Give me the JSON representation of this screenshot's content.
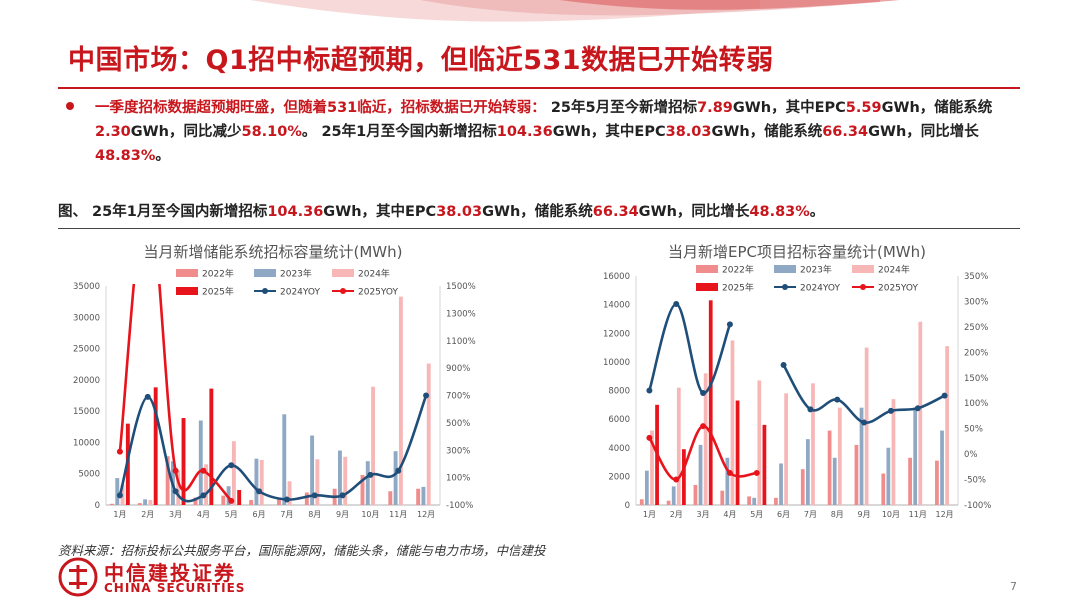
{
  "slide": {
    "title": "中国市场：Q1招中标超预期，但临近531数据已开始转弱",
    "bullet": [
      {
        "t": "一季度招标数据超预期旺盛，但随着531临近，招标数据已开始转弱：",
        "hl": true
      },
      {
        "t": " 25年5月至今新增招标",
        "hl": false
      },
      {
        "t": "7.89",
        "hl": true
      },
      {
        "t": "GWh，其中EPC",
        "hl": false
      },
      {
        "t": "5.59",
        "hl": true
      },
      {
        "t": "GWh，储能系统",
        "hl": false
      },
      {
        "t": "2.30",
        "hl": true
      },
      {
        "t": "GWh，同比减少",
        "hl": false
      },
      {
        "t": "58.10%",
        "hl": true
      },
      {
        "t": "。 25年1月至今国内新增招标",
        "hl": false
      },
      {
        "t": "104.36",
        "hl": true
      },
      {
        "t": "GWh，其中EPC",
        "hl": false
      },
      {
        "t": "38.03",
        "hl": true
      },
      {
        "t": "GWh，储能系统",
        "hl": false
      },
      {
        "t": "66.34",
        "hl": true
      },
      {
        "t": "GWh，同比增长",
        "hl": false
      },
      {
        "t": "48.83%",
        "hl": true
      },
      {
        "t": "。",
        "hl": false
      }
    ],
    "figure_caption": [
      {
        "t": "图、 25年1月至今国内新增招标",
        "hl": false
      },
      {
        "t": "104.36",
        "hl": true
      },
      {
        "t": "GWh，其中EPC",
        "hl": false
      },
      {
        "t": "38.03",
        "hl": true
      },
      {
        "t": "GWh，储能系统",
        "hl": false
      },
      {
        "t": "66.34",
        "hl": true
      },
      {
        "t": "GWh，同比增长",
        "hl": false
      },
      {
        "t": "48.83%",
        "hl": true
      },
      {
        "t": "。",
        "hl": false
      }
    ],
    "source": "资料来源：招标投标公共服务平台，国际能源网，储能头条，储能与电力市场，中信建投",
    "logo_cn": "中信建投证券",
    "logo_en": "CHINA SECURITIES",
    "page_number": "7",
    "colors": {
      "accent": "#c8161d"
    }
  },
  "chart_data": [
    {
      "type": "bar",
      "title": "当月新增储能系统招标容量统计(MWh)",
      "categories": [
        "1月",
        "2月",
        "3月",
        "4月",
        "5月",
        "6月",
        "7月",
        "8月",
        "9月",
        "10月",
        "11月",
        "12月"
      ],
      "ylim": [
        0,
        35000
      ],
      "yticks": [
        "0",
        "5000",
        "10000",
        "15000",
        "20000",
        "25000",
        "30000",
        "35000"
      ],
      "y2lim": [
        -100,
        1500
      ],
      "y2ticks": [
        "-100%",
        "100%",
        "300%",
        "500%",
        "700%",
        "900%",
        "1100%",
        "1300%",
        "1500%"
      ],
      "series": [
        {
          "name": "2022年",
          "kind": "bar",
          "color": "#f08c8c",
          "values": [
            200,
            300,
            7800,
            1200,
            1500,
            800,
            1000,
            2000,
            2600,
            4800,
            2200,
            2600
          ]
        },
        {
          "name": "2023年",
          "kind": "bar",
          "color": "#8fa8c4",
          "values": [
            4300,
            900,
            7000,
            13500,
            3000,
            7400,
            14500,
            11100,
            8700,
            7000,
            8600,
            2900
          ]
        },
        {
          "name": "2024年",
          "kind": "bar",
          "color": "#f7b7b7",
          "values": [
            3200,
            800,
            5500,
            6500,
            10200,
            7200,
            3800,
            7300,
            7700,
            18900,
            33300,
            22600
          ]
        },
        {
          "name": "2025年",
          "kind": "bar",
          "color": "#e8141c",
          "values": [
            13000,
            18800,
            13900,
            18600,
            2400,
            null,
            null,
            null,
            null,
            null,
            null,
            null
          ]
        },
        {
          "name": "2024YOY",
          "kind": "line",
          "color": "#1f4e79",
          "values": [
            -30,
            690,
            0,
            -30,
            190,
            0,
            -60,
            -30,
            -30,
            120,
            150,
            700
          ]
        },
        {
          "name": "2025YOY",
          "kind": "line",
          "color": "#e8141c",
          "values": [
            290,
            2200,
            150,
            150,
            -70,
            null,
            null,
            null,
            null,
            null,
            null,
            null
          ]
        }
      ],
      "legend": "top"
    },
    {
      "type": "bar",
      "title": "当月新增EPC项目招标容量统计(MWh)",
      "categories": [
        "1月",
        "2月",
        "3月",
        "4月",
        "5月",
        "6月",
        "7月",
        "8月",
        "9月",
        "10月",
        "11月",
        "12月"
      ],
      "ylim": [
        0,
        16000
      ],
      "yticks": [
        "0",
        "2000",
        "4000",
        "6000",
        "8000",
        "10000",
        "12000",
        "14000",
        "16000"
      ],
      "y2lim": [
        -100,
        350
      ],
      "y2ticks": [
        "-100%",
        "-50%",
        "0%",
        "50%",
        "100%",
        "150%",
        "200%",
        "250%",
        "300%",
        "350%"
      ],
      "series": [
        {
          "name": "2022年",
          "kind": "bar",
          "color": "#f08c8c",
          "values": [
            400,
            300,
            1400,
            1000,
            600,
            500,
            2500,
            5200,
            4200,
            2200,
            3300,
            3100
          ]
        },
        {
          "name": "2023年",
          "kind": "bar",
          "color": "#8fa8c4",
          "values": [
            2400,
            1300,
            4200,
            3300,
            500,
            2900,
            4600,
            3300,
            6800,
            4000,
            6800,
            5200
          ]
        },
        {
          "name": "2024年",
          "kind": "bar",
          "color": "#f7b7b7",
          "values": [
            5200,
            8200,
            9200,
            11500,
            8700,
            7800,
            8500,
            6800,
            11000,
            7400,
            12800,
            11100
          ]
        },
        {
          "name": "2025年",
          "kind": "bar",
          "color": "#e8141c",
          "values": [
            7000,
            3900,
            14300,
            7300,
            5600,
            null,
            null,
            null,
            null,
            null,
            null,
            null
          ]
        },
        {
          "name": "2024YOY",
          "kind": "line",
          "color": "#1f4e79",
          "values": [
            125,
            295,
            120,
            255,
            null,
            175,
            88,
            107,
            62,
            85,
            90,
            115
          ]
        },
        {
          "name": "2025YOY",
          "kind": "line",
          "color": "#e8141c",
          "values": [
            32,
            -50,
            55,
            -37,
            -37,
            null,
            null,
            null,
            null,
            null,
            null,
            null
          ]
        }
      ],
      "legend": "top"
    }
  ]
}
